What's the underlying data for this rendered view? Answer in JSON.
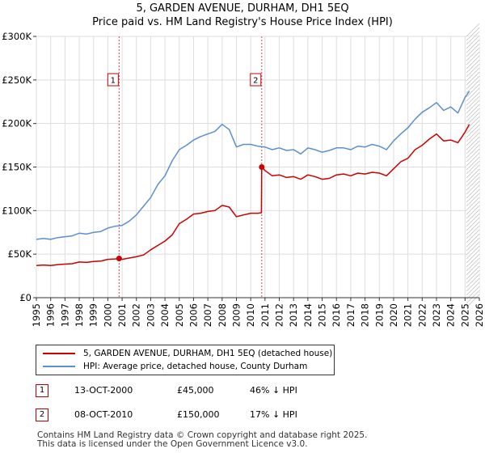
{
  "title_line1": "5, GARDEN AVENUE, DURHAM, DH1 5EQ",
  "title_line2": "Price paid vs. HM Land Registry's House Price Index (HPI)",
  "chart_data": {
    "type": "line",
    "title": "5, GARDEN AVENUE, DURHAM, DH1 5EQ - Price paid vs. HM Land Registry's House Price Index (HPI)",
    "xlim": [
      1995,
      2026
    ],
    "ylim": [
      0,
      300000
    ],
    "x_ticks": [
      "1995",
      "1996",
      "1997",
      "1998",
      "1999",
      "2000",
      "2001",
      "2002",
      "2003",
      "2004",
      "2005",
      "2006",
      "2007",
      "2008",
      "2009",
      "2010",
      "2011",
      "2012",
      "2013",
      "2014",
      "2015",
      "2016",
      "2017",
      "2018",
      "2019",
      "2020",
      "2021",
      "2022",
      "2023",
      "2024",
      "2025",
      "2026"
    ],
    "y_ticks": [
      {
        "value": 0,
        "label": "£0"
      },
      {
        "value": 50000,
        "label": "£50K"
      },
      {
        "value": 100000,
        "label": "£100K"
      },
      {
        "value": 150000,
        "label": "£150K"
      },
      {
        "value": 200000,
        "label": "£200K"
      },
      {
        "value": 250000,
        "label": "£250K"
      },
      {
        "value": 300000,
        "label": "£300K"
      }
    ],
    "grid": true,
    "colors": {
      "price_line": "#cc0000",
      "hpi_line": "#5b8fcf",
      "band": "#dde6f3",
      "marker_line": "#dd4444"
    },
    "series": [
      {
        "name": "5, GARDEN AVENUE, DURHAM, DH1 5EQ (detached house)",
        "x": [
          1995.0,
          1995.5,
          1996.0,
          1996.5,
          1997.0,
          1997.5,
          1998.0,
          1998.5,
          1999.0,
          1999.5,
          2000.0,
          2000.5,
          2000.79,
          2001.0,
          2001.5,
          2002.0,
          2002.5,
          2003.0,
          2003.5,
          2004.0,
          2004.5,
          2005.0,
          2005.5,
          2006.0,
          2006.5,
          2007.0,
          2007.5,
          2008.0,
          2008.5,
          2009.0,
          2009.5,
          2010.0,
          2010.5,
          2010.75,
          2010.77,
          2011.0,
          2011.5,
          2012.0,
          2012.5,
          2013.0,
          2013.5,
          2014.0,
          2014.5,
          2015.0,
          2015.5,
          2016.0,
          2016.5,
          2017.0,
          2017.5,
          2018.0,
          2018.5,
          2019.0,
          2019.5,
          2020.0,
          2020.5,
          2021.0,
          2021.5,
          2022.0,
          2022.5,
          2023.0,
          2023.5,
          2024.0,
          2024.5,
          2025.0,
          2025.3
        ],
        "y": [
          37000,
          37500,
          37000,
          38000,
          38500,
          39000,
          41000,
          40500,
          41500,
          42000,
          44000,
          44500,
          45000,
          44000,
          45500,
          47000,
          49000,
          55000,
          60000,
          65000,
          72000,
          85000,
          90000,
          96000,
          97000,
          99000,
          100000,
          106000,
          104000,
          93000,
          95000,
          97000,
          97000,
          97500,
          150000,
          146000,
          140000,
          141000,
          138000,
          139000,
          136000,
          141000,
          139000,
          136000,
          137000,
          141000,
          142000,
          140000,
          143000,
          142000,
          144000,
          143000,
          140000,
          148000,
          156000,
          160000,
          170000,
          175000,
          182000,
          188000,
          180000,
          181000,
          178000,
          190000,
          199000
        ]
      },
      {
        "name": "HPI: Average price, detached house, County Durham",
        "x": [
          1995.0,
          1995.5,
          1996.0,
          1996.5,
          1997.0,
          1997.5,
          1998.0,
          1998.5,
          1999.0,
          1999.5,
          2000.0,
          2000.5,
          2001.0,
          2001.5,
          2002.0,
          2002.5,
          2003.0,
          2003.5,
          2004.0,
          2004.5,
          2005.0,
          2005.5,
          2006.0,
          2006.5,
          2007.0,
          2007.5,
          2008.0,
          2008.5,
          2009.0,
          2009.5,
          2010.0,
          2010.5,
          2011.0,
          2011.5,
          2012.0,
          2012.5,
          2013.0,
          2013.5,
          2014.0,
          2014.5,
          2015.0,
          2015.5,
          2016.0,
          2016.5,
          2017.0,
          2017.5,
          2018.0,
          2018.5,
          2019.0,
          2019.5,
          2020.0,
          2020.5,
          2021.0,
          2021.5,
          2022.0,
          2022.5,
          2023.0,
          2023.5,
          2024.0,
          2024.5,
          2025.0,
          2025.3
        ],
        "y": [
          67000,
          68000,
          67000,
          69000,
          70000,
          71000,
          74000,
          73000,
          75000,
          76000,
          80000,
          82000,
          83000,
          88000,
          95000,
          105000,
          115000,
          130000,
          140000,
          157000,
          170000,
          175000,
          181000,
          185000,
          188000,
          191000,
          199000,
          193000,
          173000,
          176000,
          176000,
          174000,
          173000,
          170000,
          172000,
          169000,
          170000,
          165000,
          172000,
          170000,
          167000,
          169000,
          172000,
          172000,
          170000,
          174000,
          173000,
          176000,
          174000,
          170000,
          180000,
          188000,
          195000,
          205000,
          213000,
          218000,
          224000,
          215000,
          219000,
          212000,
          230000,
          237000
        ]
      }
    ],
    "annotations": [
      {
        "label": "1",
        "x": 2000.79,
        "y": 45000
      },
      {
        "label": "2",
        "x": 2010.77,
        "y": 150000
      }
    ],
    "forecast_start": 2025.1
  },
  "legend": {
    "price_label": "5, GARDEN AVENUE, DURHAM, DH1 5EQ (detached house)",
    "hpi_label": "HPI: Average price, detached house, County Durham"
  },
  "transactions": [
    {
      "num": "1",
      "date": "13-OCT-2000",
      "price": "£45,000",
      "hpi": "46% ↓ HPI"
    },
    {
      "num": "2",
      "date": "08-OCT-2010",
      "price": "£150,000",
      "hpi": "17% ↓ HPI"
    }
  ],
  "footer": {
    "line1": "Contains HM Land Registry data © Crown copyright and database right 2025.",
    "line2": "This data is licensed under the Open Government Licence v3.0."
  }
}
